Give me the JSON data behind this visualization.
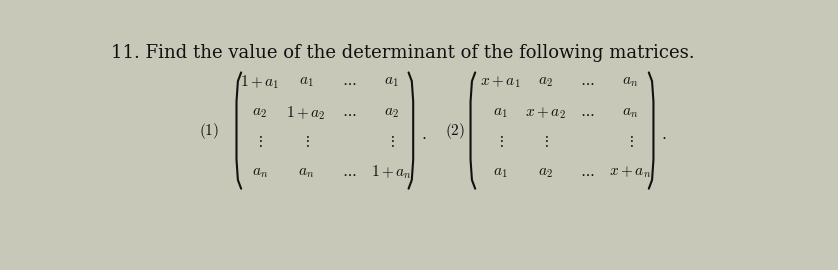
{
  "title": "11. Find the value of the determinant of the following matrices.",
  "title_fontsize": 13,
  "bg_color": "#c8c8b8",
  "text_color": "#111111",
  "mat_fontsize": 11,
  "label_fontsize": 11
}
